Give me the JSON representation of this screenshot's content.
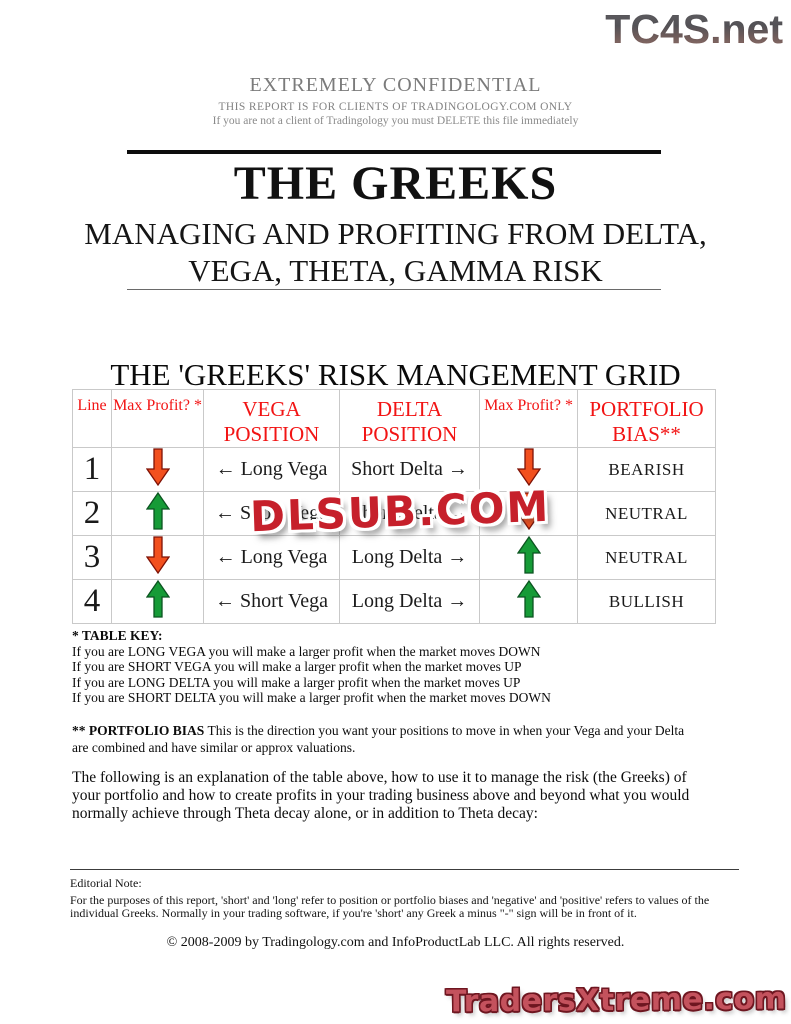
{
  "branding": {
    "top_logo": "TC4S.net",
    "watermark": "DLSUB.COM",
    "bottom_logo": "TradersXtreme.com"
  },
  "confidential": {
    "line1": "EXTREMELY CONFIDENTIAL",
    "line2": "THIS REPORT IS FOR CLIENTS OF TRADINGOLOGY.COM ONLY",
    "line3": "If you are not a client of Tradingology you must DELETE this file immediately"
  },
  "title": {
    "main": "THE GREEKS",
    "subtitle_line1": "MANAGING AND PROFITING FROM DELTA,",
    "subtitle_line2": "VEGA, THETA, GAMMA RISK"
  },
  "grid": {
    "heading": "THE 'GREEKS' RISK MANGEMENT GRID",
    "columns": [
      "Line",
      "Max Profit? *",
      "VEGA POSITION",
      "DELTA POSITION",
      "Max Profit? *",
      "PORTFOLIO BIAS**"
    ],
    "rows": [
      {
        "line": "1",
        "max_profit_left": "down",
        "vega": "← Long Vega",
        "delta": "Short Delta →",
        "max_profit_right": "down",
        "bias": "BEARISH"
      },
      {
        "line": "2",
        "max_profit_left": "up",
        "vega": "← Short Vega",
        "delta": "Short Delta →",
        "max_profit_right": "down",
        "bias": "NEUTRAL"
      },
      {
        "line": "3",
        "max_profit_left": "down",
        "vega": "← Long Vega",
        "delta": "Long Delta →",
        "max_profit_right": "up",
        "bias": "NEUTRAL"
      },
      {
        "line": "4",
        "max_profit_left": "up",
        "vega": "← Short Vega",
        "delta": "Long Delta →",
        "max_profit_right": "up",
        "bias": "BULLISH"
      }
    ]
  },
  "table_key": {
    "heading": "* TABLE KEY:",
    "lines": [
      "If you are LONG VEGA you will make a larger profit when the market moves DOWN",
      "If you are SHORT VEGA you will make a larger profit when the market moves UP",
      "If you are LONG DELTA you will make a larger profit when the market moves UP",
      "If you are SHORT DELTA you will make a larger profit when the market moves DOWN"
    ]
  },
  "portfolio_bias": {
    "label": "** PORTFOLIO BIAS",
    "text": " This is the direction you want your positions to move in when your Vega and your Delta are combined and have similar or approx valuations."
  },
  "explanation": "The following is an explanation of the table above, how to use it to manage the risk (the Greeks) of your portfolio and how to create profits in your trading business above and beyond what you would normally achieve through Theta decay alone, or in addition to Theta decay:",
  "editorial": {
    "heading": "Editorial Note:",
    "text": "For the purposes of this report, 'short' and 'long' refer to position or portfolio biases and 'negative' and 'positive' refers to values of the individual Greeks. Normally in your trading software, if you're 'short' any Greek a minus \"-\" sign will be in front of it."
  },
  "copyright": "© 2008-2009 by Tradingology.com and InfoProductLab LLC. All rights reserved.",
  "colors": {
    "header_red": "#f21414",
    "arrow_down_fill": "#F2501E",
    "arrow_down_stroke": "#7e1206",
    "arrow_up_fill": "#169B37",
    "arrow_up_stroke": "#0b5420",
    "watermark_red": "#c6202b",
    "bottom_logo_red": "#c4525d"
  }
}
